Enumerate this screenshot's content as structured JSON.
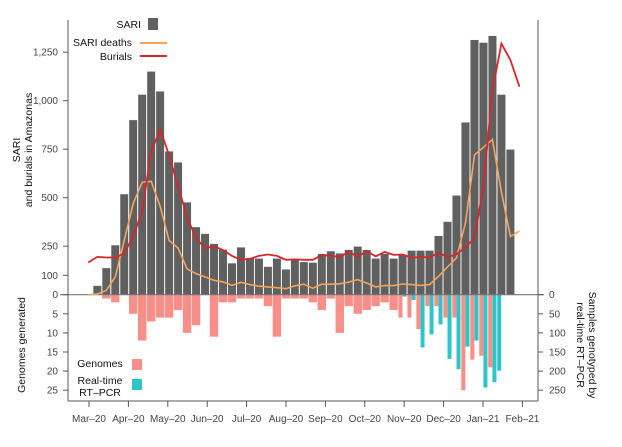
{
  "chart_data": {
    "type": "bar",
    "title": "",
    "colors": {
      "sari": "#606060",
      "deaths": "#f5a55a",
      "burials": "#d7262b",
      "genomes": "#f78f88",
      "rtpcr": "#2ec5c8",
      "axis": "#555555"
    },
    "top_panel": {
      "ylabel_line1": "SARI",
      "ylabel_line2": "and burials in Amazonas",
      "ylim": [
        0,
        1350
      ],
      "yticks": [
        0,
        100,
        250,
        500,
        750,
        1000,
        1250
      ],
      "ytick_labels": [
        "0",
        "100",
        "250",
        "500",
        "750",
        "1,000",
        "1,250"
      ],
      "legend": {
        "placement": "top-left",
        "sari": "SARI",
        "deaths": "SARI deaths",
        "burials": "Burials"
      },
      "sari_weekly": [
        47,
        138,
        256,
        519,
        901,
        1032,
        1151,
        1049,
        740,
        683,
        477,
        349,
        315,
        263,
        233,
        163,
        245,
        190,
        187,
        145,
        187,
        131,
        180,
        169,
        166,
        211,
        225,
        214,
        232,
        249,
        232,
        187,
        211,
        187,
        207,
        228,
        228,
        228,
        304,
        377,
        512,
        889,
        1314,
        1300,
        1335,
        1032,
        749
      ],
      "line_start_week": -1,
      "sari_deaths": [
        0,
        3,
        22,
        92,
        280,
        470,
        580,
        584,
        455,
        280,
        240,
        133,
        108,
        92,
        74,
        66,
        48,
        64,
        52,
        44,
        40,
        36,
        31,
        46,
        54,
        33,
        54,
        54,
        56,
        65,
        78,
        60,
        40,
        47,
        47,
        55,
        52,
        48,
        52,
        95,
        143,
        190,
        370,
        720,
        760,
        800,
        530,
        300,
        328
      ],
      "burials": [
        166,
        195,
        192,
        192,
        213,
        300,
        430,
        740,
        850,
        720,
        560,
        400,
        290,
        240,
        250,
        230,
        200,
        180,
        185,
        200,
        207,
        200,
        180,
        182,
        180,
        180,
        204,
        200,
        195,
        221,
        196,
        224,
        198,
        220,
        205,
        207,
        190,
        195,
        192,
        216,
        195,
        207,
        247,
        290,
        560,
        1050,
        1295,
        1210,
        1072
      ]
    },
    "bottom_panel": {
      "ylabel_left": "Genomes generated",
      "ylabel_right_line1": "Samples genotyped by",
      "ylabel_right_line2": "real-time RT–PCR",
      "left_ylim": [
        0,
        27
      ],
      "left_yticks": [
        "0",
        "5",
        "10",
        "15",
        "20",
        "25"
      ],
      "right_ylim": [
        0,
        270
      ],
      "right_yticks": [
        "0",
        "50",
        "100",
        "150",
        "200",
        "250"
      ],
      "legend": {
        "placement": "bottom-left",
        "genomes": "Genomes",
        "rtpcr_line1": "Real-time",
        "rtpcr_line2": "RT–PCR"
      },
      "genomes_weekly": [
        0,
        1,
        2,
        0,
        5,
        12,
        7,
        6,
        6,
        4,
        10,
        8,
        0,
        11,
        2,
        2,
        1,
        1,
        1,
        3,
        11,
        1,
        1,
        1,
        2,
        4,
        1,
        10,
        3,
        5,
        4,
        3,
        2,
        4,
        6,
        6,
        9,
        3,
        3,
        6,
        6,
        25,
        17,
        16,
        19,
        0,
        0
      ],
      "rtpcr_weekly": [
        0,
        0,
        0,
        0,
        0,
        0,
        0,
        0,
        0,
        0,
        0,
        0,
        0,
        0,
        0,
        0,
        0,
        0,
        0,
        0,
        0,
        0,
        0,
        0,
        0,
        0,
        0,
        0,
        0,
        0,
        0,
        0,
        0,
        0,
        5,
        14,
        138,
        104,
        78,
        168,
        195,
        136,
        120,
        243,
        229,
        199,
        0
      ]
    },
    "x_axis": {
      "tick_labels": [
        "Mar–20",
        "Apr–20",
        "May–20",
        "Jun–20",
        "Jul–20",
        "Aug–20",
        "Sep–20",
        "Oct–20",
        "Nov–20",
        "Dec–20",
        "Jan–21",
        "Feb–21"
      ]
    }
  }
}
